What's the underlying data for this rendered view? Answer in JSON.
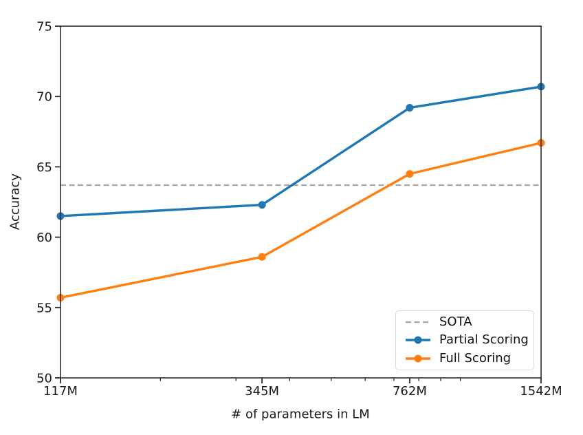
{
  "chart_data": {
    "type": "line",
    "title": "",
    "xlabel": "# of parameters in LM",
    "ylabel": "Accuracy",
    "x_scale": "log",
    "categories": [
      "117M",
      "345M",
      "762M",
      "1542M"
    ],
    "x_values": [
      117,
      345,
      762,
      1542
    ],
    "x_minor_ticks": [
      200,
      300,
      400,
      500,
      600,
      700,
      800,
      900,
      1000
    ],
    "y_ticks": [
      50,
      55,
      60,
      65,
      70,
      75
    ],
    "ylim": [
      50,
      75
    ],
    "grid": false,
    "series": [
      {
        "name": "Partial Scoring",
        "color": "#1f77b4",
        "values": [
          61.5,
          62.3,
          69.2,
          70.7
        ]
      },
      {
        "name": "Full Scoring",
        "color": "#ff7f0e",
        "values": [
          55.7,
          58.6,
          64.5,
          66.7
        ]
      }
    ],
    "reference_line": {
      "name": "SOTA",
      "value": 63.7,
      "color": "#a9a9a9",
      "style": "dashed"
    },
    "legend": {
      "position": "lower right",
      "items": [
        "SOTA",
        "Partial Scoring",
        "Full Scoring"
      ]
    }
  },
  "colors": {
    "axis": "#2b2b2b",
    "tick_label": "#1a1a1a",
    "background": "#ffffff"
  }
}
